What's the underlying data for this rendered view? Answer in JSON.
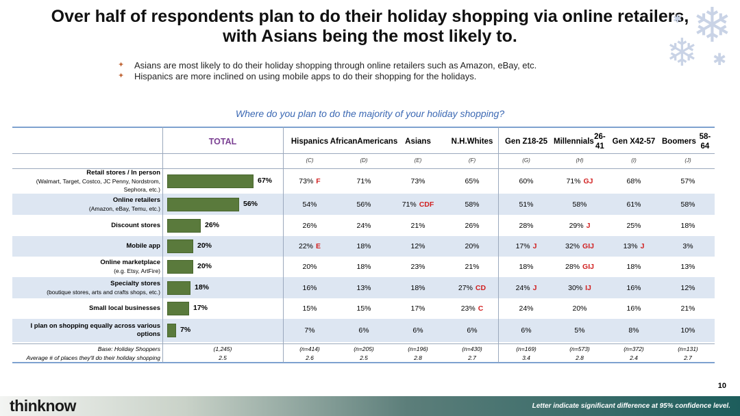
{
  "title": "Over half of respondents plan to do their holiday shopping via online retailers, with Asians being the most likely to.",
  "bullets": [
    "Asians are most likely to do their holiday shopping through online retailers such as Amazon, eBay, etc.",
    "Hispanics are more inclined on using mobile apps to do their shopping for the holidays."
  ],
  "icons": {
    "bullet": "star-bullet-icon",
    "decoration": "snowflake-icon"
  },
  "colors": {
    "bar": "#5a7a3c",
    "question": "#3b68b3",
    "total_header": "#7a3f92",
    "significance": "#d11f1f",
    "shade": "#dde6f2"
  },
  "chart_data": {
    "type": "bar",
    "title": "Where do you plan to do the majority of your holiday shopping?",
    "total_header": "TOTAL",
    "columns": [
      {
        "name": "Hispanics",
        "sub": "",
        "letter": "(C)",
        "base": "(n=414)",
        "avg": "2.6"
      },
      {
        "name": "African",
        "sub": "Americans",
        "letter": "(D)",
        "base": "(n=205)",
        "avg": "2.5"
      },
      {
        "name": "Asians",
        "sub": "",
        "letter": "(E)",
        "base": "(n=196)",
        "avg": "2.8"
      },
      {
        "name": "N.H.",
        "sub": "Whites",
        "letter": "(F)",
        "base": "(n=430)",
        "avg": "2.7"
      },
      {
        "name": "Gen Z",
        "sub": "18-25",
        "letter": "(G)",
        "base": "(n=169)",
        "avg": "3.4"
      },
      {
        "name": "Millennials",
        "sub": "26-41",
        "letter": "(H)",
        "base": "(n=573)",
        "avg": "2.8"
      },
      {
        "name": "Gen X",
        "sub": "42-57",
        "letter": "(I)",
        "base": "(n=372)",
        "avg": "2.4"
      },
      {
        "name": "Boomers",
        "sub": "58-64",
        "letter": "(J)",
        "base": "(n=131)",
        "avg": "2.7"
      }
    ],
    "rows": [
      {
        "label": "Retail stores / In person",
        "sub": "(Walmart, Target, Costco,  JC Penny, Nordstrom, Sephora, etc.)",
        "total": 67,
        "cells": [
          [
            "73%",
            "F"
          ],
          [
            "71%",
            ""
          ],
          [
            "73%",
            ""
          ],
          [
            "65%",
            ""
          ],
          [
            "60%",
            ""
          ],
          [
            "71%",
            "GJ"
          ],
          [
            "68%",
            ""
          ],
          [
            "57%",
            ""
          ]
        ]
      },
      {
        "label": "Online retailers",
        "sub": "(Amazon, eBay, Temu, etc.)",
        "total": 56,
        "cells": [
          [
            "54%",
            ""
          ],
          [
            "56%",
            ""
          ],
          [
            "71%",
            "CDF"
          ],
          [
            "58%",
            ""
          ],
          [
            "51%",
            ""
          ],
          [
            "58%",
            ""
          ],
          [
            "61%",
            ""
          ],
          [
            "58%",
            ""
          ]
        ]
      },
      {
        "label": "Discount stores",
        "sub": "",
        "total": 26,
        "cells": [
          [
            "26%",
            ""
          ],
          [
            "24%",
            ""
          ],
          [
            "21%",
            ""
          ],
          [
            "26%",
            ""
          ],
          [
            "28%",
            ""
          ],
          [
            "29%",
            "J"
          ],
          [
            "25%",
            ""
          ],
          [
            "18%",
            ""
          ]
        ]
      },
      {
        "label": "Mobile app",
        "sub": "",
        "total": 20,
        "cells": [
          [
            "22%",
            "E"
          ],
          [
            "18%",
            ""
          ],
          [
            "12%",
            ""
          ],
          [
            "20%",
            ""
          ],
          [
            "17%",
            "J"
          ],
          [
            "32%",
            "GIJ"
          ],
          [
            "13%",
            "J"
          ],
          [
            "3%",
            ""
          ]
        ]
      },
      {
        "label": "Online marketplace",
        "sub": "(e.g. Etsy, ArtFire)",
        "total": 20,
        "cells": [
          [
            "20%",
            ""
          ],
          [
            "18%",
            ""
          ],
          [
            "23%",
            ""
          ],
          [
            "21%",
            ""
          ],
          [
            "18%",
            ""
          ],
          [
            "28%",
            "GIJ"
          ],
          [
            "18%",
            ""
          ],
          [
            "13%",
            ""
          ]
        ]
      },
      {
        "label": "Specialty stores",
        "sub": "(boutique stores, arts and crafts shops, etc.)",
        "total": 18,
        "cells": [
          [
            "16%",
            ""
          ],
          [
            "13%",
            ""
          ],
          [
            "18%",
            ""
          ],
          [
            "27%",
            "CD"
          ],
          [
            "24%",
            "J"
          ],
          [
            "30%",
            "IJ"
          ],
          [
            "16%",
            ""
          ],
          [
            "12%",
            ""
          ]
        ]
      },
      {
        "label": "Small local businesses",
        "sub": "",
        "total": 17,
        "cells": [
          [
            "15%",
            ""
          ],
          [
            "15%",
            ""
          ],
          [
            "17%",
            ""
          ],
          [
            "23%",
            "C"
          ],
          [
            "24%",
            ""
          ],
          [
            "20%",
            ""
          ],
          [
            "16%",
            ""
          ],
          [
            "21%",
            ""
          ]
        ]
      },
      {
        "label": "I plan on shopping equally across various options",
        "sub": "",
        "total": 7,
        "cells": [
          [
            "7%",
            ""
          ],
          [
            "6%",
            ""
          ],
          [
            "6%",
            ""
          ],
          [
            "6%",
            ""
          ],
          [
            "6%",
            ""
          ],
          [
            "5%",
            ""
          ],
          [
            "8%",
            ""
          ],
          [
            "10%",
            ""
          ]
        ]
      }
    ],
    "base_label": "Base: Holiday Shoppers",
    "base_total": "(1,245)",
    "avg_label": "Average # of places they'll do their holiday shopping",
    "avg_total": "2.5",
    "xlim": [
      0,
      100
    ]
  },
  "page_number": "10",
  "brand": "thinknow",
  "footnote": "Letter indicate significant difference at 95% confidence level."
}
